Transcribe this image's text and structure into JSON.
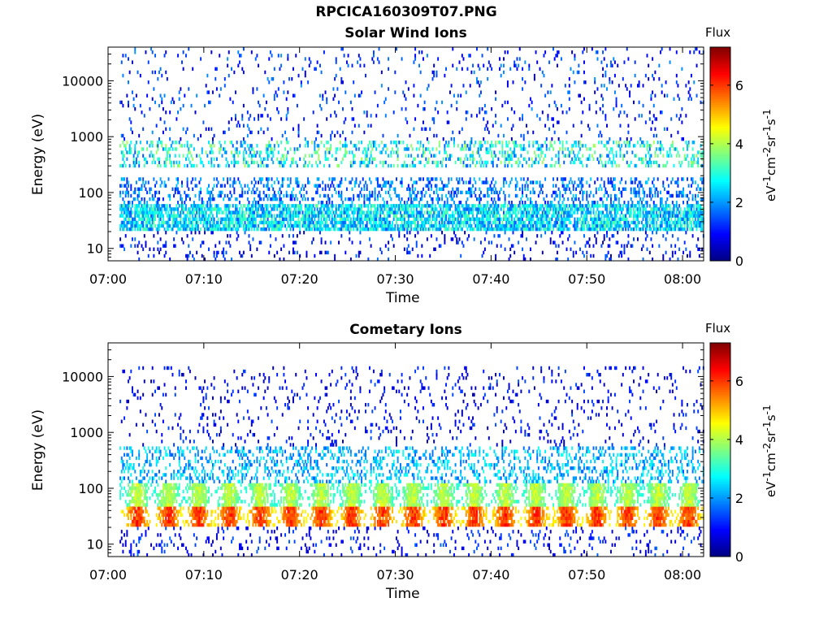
{
  "figure": {
    "title_line1": "RPCICA160309T07.PNG"
  },
  "chart_data": [
    {
      "type": "heatmap",
      "title": "Solar Wind Ions",
      "xlabel": "Time",
      "ylabel": "Energy (eV)",
      "x_range": [
        "07:01",
        "08:02"
      ],
      "x_ticks": [
        "07:00",
        "07:10",
        "07:20",
        "07:30",
        "07:40",
        "07:50",
        "08:00"
      ],
      "y_scale": "log",
      "y_range": [
        6,
        40000
      ],
      "y_ticks": [
        "10",
        "100",
        "1000",
        "10000"
      ],
      "colorbar": {
        "title": "Flux",
        "label": "eV-1cm-2sr-1s-1",
        "label_base": "eV",
        "label_exp1": "-1",
        "label_mid1": "cm",
        "label_exp2": "-2",
        "label_mid2": "sr",
        "label_exp3": "-1",
        "label_mid3": "s",
        "label_exp4": "-1",
        "range": [
          0,
          7.3
        ],
        "ticks": [
          "0",
          "2",
          "4",
          "6"
        ],
        "colormap": "jet"
      },
      "bands": [
        {
          "energy_eV": [
            20,
            60
          ],
          "flux": [
            1.5,
            3.5
          ],
          "density": "high"
        },
        {
          "energy_eV": [
            60,
            200
          ],
          "flux": [
            1.0,
            2.5
          ],
          "density": "medium"
        },
        {
          "energy_eV": [
            300,
            800
          ],
          "flux": [
            1.5,
            4.0
          ],
          "density": "medium"
        },
        {
          "energy_eV": [
            800,
            40000
          ],
          "flux": [
            0.5,
            2.0
          ],
          "density": "sparse"
        }
      ]
    },
    {
      "type": "heatmap",
      "title": "Cometary Ions",
      "xlabel": "Time",
      "ylabel": "Energy (eV)",
      "x_range": [
        "07:01",
        "08:02"
      ],
      "x_ticks": [
        "07:00",
        "07:10",
        "07:20",
        "07:30",
        "07:40",
        "07:50",
        "08:00"
      ],
      "y_scale": "log",
      "y_range": [
        6,
        40000
      ],
      "y_ticks": [
        "10",
        "100",
        "1000",
        "10000"
      ],
      "colorbar": {
        "title": "Flux",
        "label": "eV-1cm-2sr-1s-1",
        "label_base": "eV",
        "label_exp1": "-1",
        "label_mid1": "cm",
        "label_exp2": "-2",
        "label_mid2": "sr",
        "label_exp3": "-1",
        "label_mid3": "s",
        "label_exp4": "-1",
        "range": [
          0,
          7.3
        ],
        "ticks": [
          "0",
          "2",
          "4",
          "6"
        ],
        "colormap": "jet"
      },
      "pulse_period_min": 3.2,
      "bands": [
        {
          "energy_eV": [
            20,
            50
          ],
          "flux": [
            4.0,
            6.5
          ],
          "density": "pulsed"
        },
        {
          "energy_eV": [
            50,
            130
          ],
          "flux": [
            2.5,
            4.5
          ],
          "density": "pulsed"
        },
        {
          "energy_eV": [
            130,
            600
          ],
          "flux": [
            1.5,
            3.0
          ],
          "density": "medium"
        },
        {
          "energy_eV": [
            600,
            15000
          ],
          "flux": [
            0.3,
            1.5
          ],
          "density": "sparse"
        }
      ]
    }
  ]
}
